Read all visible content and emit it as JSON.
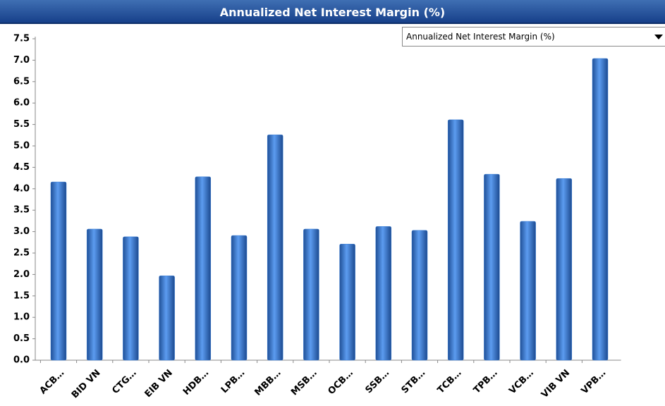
{
  "chart_data": {
    "type": "bar",
    "title": "Annualized Net Interest Margin (%)",
    "categories": [
      "ACB…",
      "BID VN",
      "CTG…",
      "EIB VN",
      "HDB…",
      "LPB…",
      "MBB…",
      "MSB…",
      "OCB…",
      "SSB…",
      "STB…",
      "TCB…",
      "TPB…",
      "VCB…",
      "VIB VN",
      "VPB…"
    ],
    "values": [
      4.16,
      3.06,
      2.88,
      1.97,
      4.28,
      2.91,
      5.26,
      3.06,
      2.71,
      3.12,
      3.03,
      5.61,
      4.34,
      3.24,
      4.24,
      7.04
    ],
    "color": "#3b7fd6",
    "ylim": [
      0,
      7.5
    ],
    "yticks": [
      {
        "value": 0,
        "label": "0.0"
      },
      0.5,
      {
        "value": 1,
        "label": "1.0"
      },
      1.5,
      {
        "value": 2,
        "label": "2.0"
      },
      2.5,
      {
        "value": 3,
        "label": "3.0"
      },
      3.5,
      {
        "value": 4,
        "label": "4.0"
      },
      4.5,
      {
        "value": 5,
        "label": "5.0"
      },
      5.5,
      {
        "value": 6,
        "label": "6.0"
      },
      6.5,
      {
        "value": 7,
        "label": "7.0"
      },
      7.5
    ],
    "grid": false
  },
  "dropdown": {
    "selected": "Annualized Net Interest Margin (%)"
  }
}
